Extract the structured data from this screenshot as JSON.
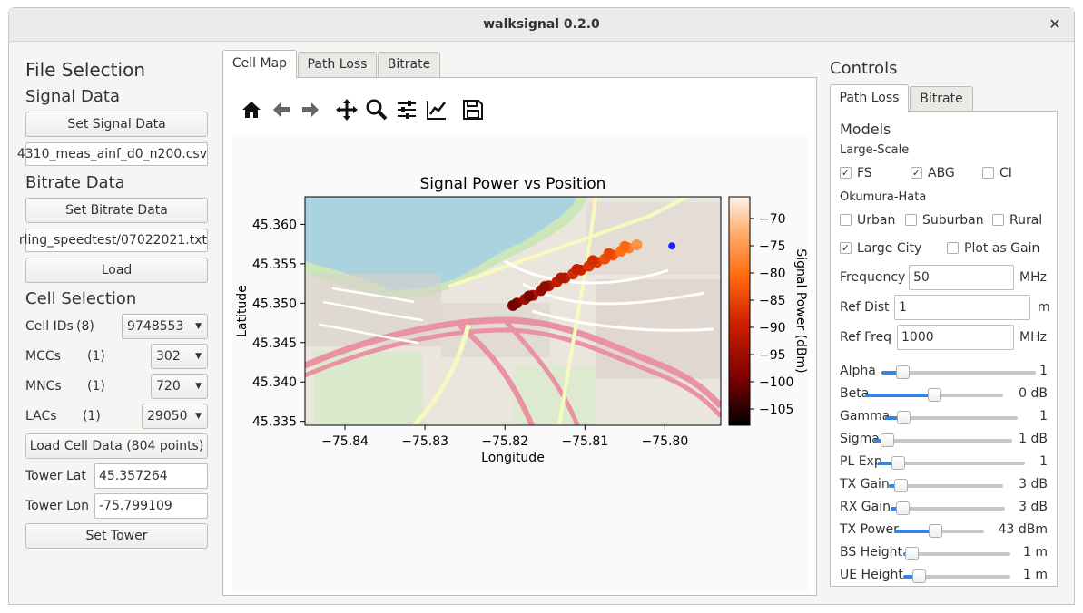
{
  "window": {
    "title": "walksignal 0.2.0",
    "close": "✕"
  },
  "left": {
    "file_selection": "File Selection",
    "signal_data": "Signal Data",
    "set_signal_data": "Set Signal Data",
    "signal_file": "4310_meas_ainf_d0_n200.csv",
    "bitrate_data": "Bitrate Data",
    "set_bitrate_data": "Set Bitrate Data",
    "bitrate_file": "rling_speedtest/07022021.txt",
    "load": "Load",
    "cell_selection": "Cell Selection",
    "cell_ids_label": "Cell IDs",
    "cell_ids_count": "(8)",
    "cell_ids_value": "9748553",
    "mccs_label": "MCCs",
    "mccs_count": "(1)",
    "mccs_value": "302",
    "mncs_label": "MNCs",
    "mncs_count": "(1)",
    "mncs_value": "720",
    "lacs_label": "LACs",
    "lacs_count": "(1)",
    "lacs_value": "29050",
    "load_cell_data": "Load Cell Data (804 points)",
    "tower_lat_label": "Tower Lat",
    "tower_lat": "45.357264",
    "tower_lon_label": "Tower Lon",
    "tower_lon": "-75.799109",
    "set_tower": "Set Tower"
  },
  "center": {
    "tabs": [
      "Cell Map",
      "Path Loss",
      "Bitrate"
    ],
    "toolbar_icons": [
      "home-icon",
      "back-icon",
      "forward-icon",
      "pan-icon",
      "zoom-icon",
      "configure-icon",
      "edit-axes-icon",
      "save-icon"
    ]
  },
  "chart_data": {
    "type": "scatter",
    "title": "Signal Power vs Position",
    "xlabel": "Longitude",
    "ylabel": "Latitude",
    "colorbar_label": "Signal Power (dBm)",
    "xlim": [
      -75.845,
      -75.793
    ],
    "ylim": [
      45.3345,
      45.3635
    ],
    "xticks": [
      "−75.84",
      "−75.83",
      "−75.82",
      "−75.81",
      "−75.80"
    ],
    "xtick_values": [
      -75.84,
      -75.83,
      -75.82,
      -75.81,
      -75.8
    ],
    "yticks": [
      "45.360",
      "45.355",
      "45.350",
      "45.345",
      "45.340",
      "45.335"
    ],
    "ytick_values": [
      45.36,
      45.355,
      45.35,
      45.345,
      45.34,
      45.335
    ],
    "colorbar_ticks": [
      "−70",
      "−75",
      "−80",
      "−85",
      "−90",
      "−95",
      "−100",
      "−105"
    ],
    "colorbar_tick_values": [
      -70,
      -75,
      -80,
      -85,
      -90,
      -95,
      -100,
      -105
    ],
    "clim": [
      -108,
      -66
    ],
    "colormap_stops": [
      "#000000",
      "#7a0000",
      "#cc2200",
      "#ff6a10",
      "#ffb070",
      "#fff4ec"
    ],
    "points": [
      {
        "x": -75.8185,
        "y": 45.35,
        "v": -98
      },
      {
        "x": -75.8175,
        "y": 45.3505,
        "v": -96
      },
      {
        "x": -75.8165,
        "y": 45.351,
        "v": -95
      },
      {
        "x": -75.8155,
        "y": 45.3516,
        "v": -97
      },
      {
        "x": -75.8145,
        "y": 45.3522,
        "v": -94
      },
      {
        "x": -75.8135,
        "y": 45.3527,
        "v": -92
      },
      {
        "x": -75.8125,
        "y": 45.3532,
        "v": -93
      },
      {
        "x": -75.8115,
        "y": 45.3537,
        "v": -90
      },
      {
        "x": -75.8105,
        "y": 45.3542,
        "v": -91
      },
      {
        "x": -75.8095,
        "y": 45.3547,
        "v": -89
      },
      {
        "x": -75.8085,
        "y": 45.3552,
        "v": -88
      },
      {
        "x": -75.8075,
        "y": 45.3556,
        "v": -86
      },
      {
        "x": -75.8065,
        "y": 45.3561,
        "v": -85
      },
      {
        "x": -75.8055,
        "y": 45.3566,
        "v": -82
      },
      {
        "x": -75.8045,
        "y": 45.357,
        "v": -80
      },
      {
        "x": -75.8035,
        "y": 45.3574,
        "v": -78
      },
      {
        "x": -75.819,
        "y": 45.3497,
        "v": -100
      },
      {
        "x": -75.817,
        "y": 45.3509,
        "v": -99
      },
      {
        "x": -75.815,
        "y": 45.3521,
        "v": -97
      },
      {
        "x": -75.813,
        "y": 45.3532,
        "v": -94
      },
      {
        "x": -75.811,
        "y": 45.3543,
        "v": -92
      },
      {
        "x": -75.809,
        "y": 45.3554,
        "v": -90
      },
      {
        "x": -75.807,
        "y": 45.3563,
        "v": -87
      },
      {
        "x": -75.805,
        "y": 45.3572,
        "v": -83
      }
    ],
    "tower": {
      "x": -75.799109,
      "y": 45.357264,
      "color": "#1a1aff"
    }
  },
  "controls": {
    "title": "Controls",
    "tabs": [
      "Path Loss",
      "Bitrate"
    ],
    "models": "Models",
    "large_scale": "Large-Scale",
    "fs": "FS",
    "fs_checked": true,
    "abg": "ABG",
    "abg_checked": true,
    "ci": "CI",
    "ci_checked": false,
    "okumura_hata": "Okumura-Hata",
    "urban": "Urban",
    "urban_checked": false,
    "suburban": "Suburban",
    "suburban_checked": false,
    "rural": "Rural",
    "rural_checked": false,
    "large_city": "Large City",
    "large_city_checked": true,
    "plot_as_gain": "Plot as Gain",
    "plot_as_gain_checked": false,
    "frequency_label": "Frequency",
    "frequency": "50",
    "frequency_unit": "MHz",
    "ref_dist_label": "Ref Dist",
    "ref_dist": "1",
    "ref_dist_unit": "m",
    "ref_freq_label": "Ref Freq",
    "ref_freq": "1000",
    "ref_freq_unit": "MHz",
    "sliders": [
      {
        "label": "Alpha",
        "value": "1",
        "level": 0.1
      },
      {
        "label": "Beta",
        "value": "0 dB",
        "level": 0.5
      },
      {
        "label": "Gamma",
        "value": "1",
        "level": 0.1
      },
      {
        "label": "Sigma",
        "value": "1 dB",
        "level": 0.05
      },
      {
        "label": "PL Exp",
        "value": "1",
        "level": 0.1
      },
      {
        "label": "TX Gain",
        "value": "3 dB",
        "level": 0.05
      },
      {
        "label": "RX Gain",
        "value": "3 dB",
        "level": 0.05
      },
      {
        "label": "TX Power",
        "value": "43 dBm",
        "level": 0.45
      },
      {
        "label": "BS Height",
        "value": "1 m",
        "level": 0.02
      },
      {
        "label": "UE Height",
        "value": "1 m",
        "level": 0.1
      }
    ],
    "accent": "#3584e4"
  }
}
